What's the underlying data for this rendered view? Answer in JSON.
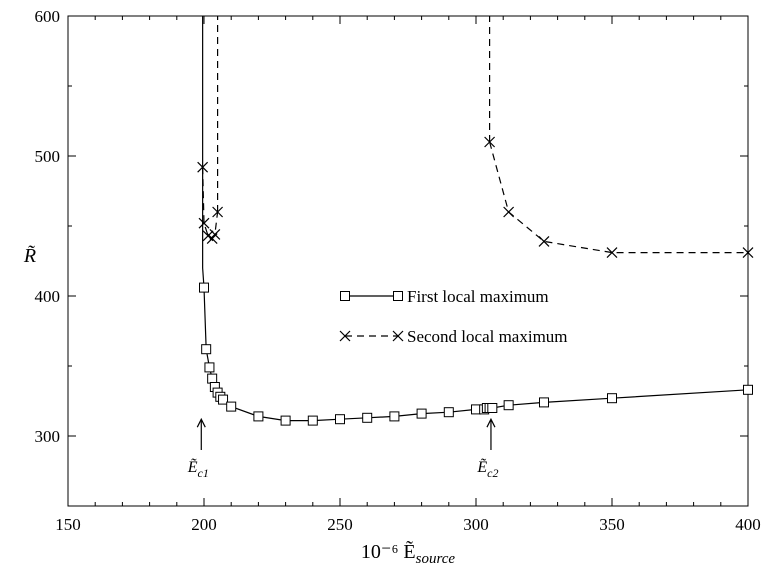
{
  "chart_data": {
    "type": "line",
    "xlabel": "10⁻⁶ Ẽ",
    "xlabel_sub": "source",
    "ylabel": "R̃",
    "xlim": [
      150,
      400
    ],
    "ylim": [
      250,
      600
    ],
    "xticks": [
      150,
      200,
      250,
      300,
      350,
      400
    ],
    "yticks": [
      300,
      400,
      500,
      600
    ],
    "xtick_labels": [
      "150",
      "200",
      "250",
      "300",
      "350",
      "400"
    ],
    "ytick_labels": [
      "300",
      "400",
      "500",
      "600"
    ],
    "grid": false,
    "legend_position": "center-right",
    "series": [
      {
        "name": "First local maximum",
        "marker": "square",
        "line_style": "solid",
        "vertical_line": {
          "x": 199.5,
          "y_from": 600,
          "y_to": 420
        },
        "points": [
          [
            200.0,
            406
          ],
          [
            200.8,
            362
          ],
          [
            202.0,
            349
          ],
          [
            203.0,
            341
          ],
          [
            204.0,
            335
          ],
          [
            205.0,
            331
          ],
          [
            206.0,
            328
          ],
          [
            207.0,
            326
          ],
          [
            210.0,
            321
          ],
          [
            220.0,
            314
          ],
          [
            230.0,
            311
          ],
          [
            240.0,
            311
          ],
          [
            250.0,
            312
          ],
          [
            260.0,
            313
          ],
          [
            270.0,
            314
          ],
          [
            280.0,
            316
          ],
          [
            290.0,
            317
          ],
          [
            300.0,
            319
          ],
          [
            303.0,
            319
          ],
          [
            304.0,
            320
          ],
          [
            305.0,
            320
          ],
          [
            306.0,
            320
          ],
          [
            312.0,
            322
          ],
          [
            325.0,
            324
          ],
          [
            350.0,
            327
          ],
          [
            400.0,
            333
          ]
        ]
      },
      {
        "name": "Second local maximum",
        "marker": "x",
        "line_style": "dashed",
        "branches": [
          {
            "points": [
              [
                199.5,
                492
              ],
              [
                200.0,
                452
              ],
              [
                201.5,
                443
              ],
              [
                203.0,
                441
              ],
              [
                204.0,
                444
              ],
              [
                205.0,
                460
              ]
            ],
            "vertical_line": {
              "x": 205.0,
              "y_from": 460,
              "y_to": 600
            }
          },
          {
            "points": [
              [
                305.0,
                510
              ],
              [
                312.0,
                460
              ],
              [
                325.0,
                439
              ],
              [
                350.0,
                431
              ],
              [
                400.0,
                431
              ]
            ],
            "vertical_line": {
              "x": 305.0,
              "y_from": 510,
              "y_to": 600
            }
          }
        ]
      }
    ],
    "annotations": [
      {
        "label": "Ẽ",
        "sub": "c1",
        "x": 199.0,
        "y_tip": 312,
        "y_base": 290
      },
      {
        "label": "Ẽ",
        "sub": "c2",
        "x": 305.5,
        "y_tip": 312,
        "y_base": 290
      }
    ],
    "colors": {
      "line": "#000000",
      "background": "#ffffff"
    }
  }
}
